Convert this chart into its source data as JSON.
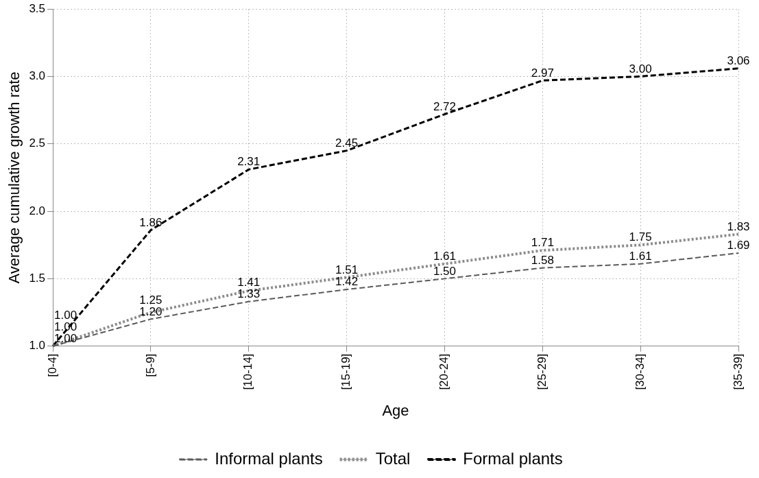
{
  "chart_data": {
    "type": "line",
    "xlabel": "Age",
    "ylabel": "Average cumulative growth rate",
    "categories": [
      "[0-4]",
      "[5-9]",
      "[10-14]",
      "[15-19]",
      "[20-24]",
      "[25-29]",
      "[30-34]",
      "[35-39]"
    ],
    "ylim": [
      1,
      3.5
    ],
    "yticks": [
      {
        "value": 1,
        "label": "1.0"
      },
      {
        "value": 1.5,
        "label": "1.5"
      },
      {
        "value": 2,
        "label": "2.0"
      },
      {
        "value": 2.5,
        "label": "2.5"
      },
      {
        "value": 3,
        "label": "3.0"
      },
      {
        "value": 3.5,
        "label": "3.5"
      }
    ],
    "grid": true,
    "legend": "bottom",
    "marker": "none",
    "series": [
      {
        "name": "Informal plants",
        "color": "#595959",
        "line_style": "dashed",
        "values": [
          1.0,
          1.2,
          1.33,
          1.42,
          1.5,
          1.58,
          1.61,
          1.69
        ],
        "value_labels": [
          "1.00",
          "1.20",
          "1.33",
          "1.42",
          "1.50",
          "1.58",
          "1.61",
          "1.69"
        ]
      },
      {
        "name": "Total",
        "color": "#8c8c8c",
        "line_style": "dotted",
        "values": [
          1.0,
          1.25,
          1.41,
          1.51,
          1.61,
          1.71,
          1.75,
          1.83
        ],
        "value_labels": [
          "1.00",
          "1.25",
          "1.41",
          "1.51",
          "1.61",
          "1.71",
          "1.75",
          "1.83"
        ]
      },
      {
        "name": "Formal plants",
        "color": "#000000",
        "line_style": "dashed",
        "values": [
          1.0,
          1.86,
          2.31,
          2.45,
          2.72,
          2.97,
          3.0,
          3.06
        ],
        "value_labels": [
          "1.00",
          "1.86",
          "2.31",
          "2.45",
          "2.72",
          "2.97",
          "3.00",
          "3.06"
        ]
      }
    ]
  }
}
